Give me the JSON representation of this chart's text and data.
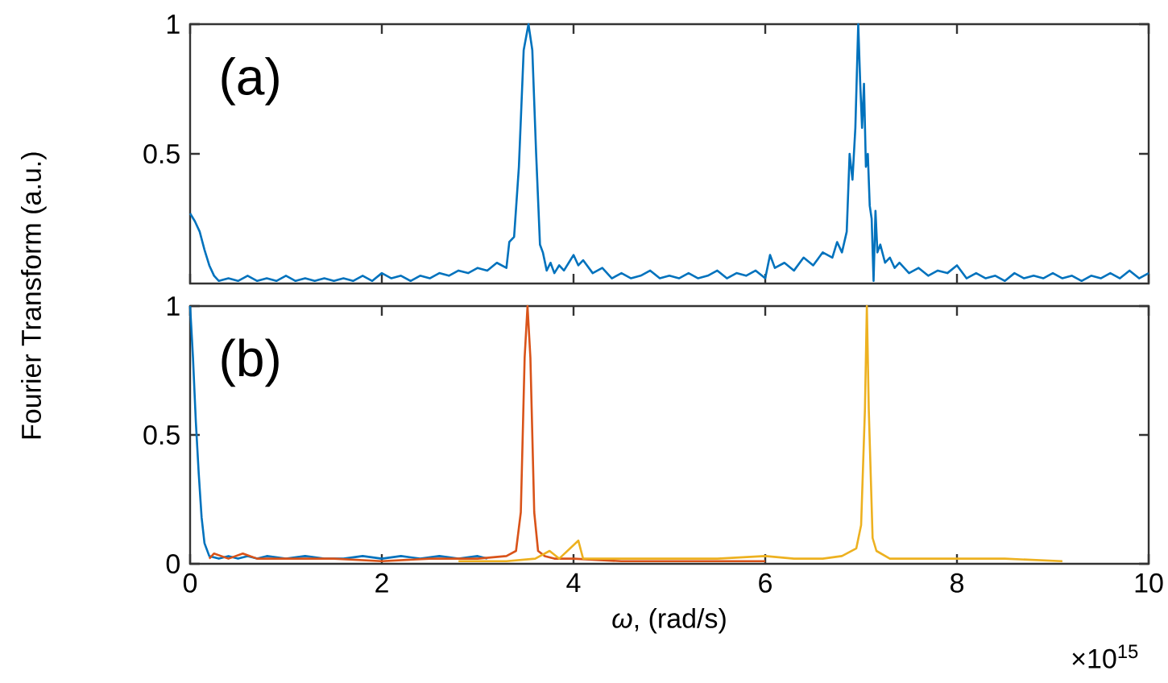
{
  "chart_data": [
    {
      "type": "line",
      "xlim": [
        0,
        10
      ],
      "xticks": [
        0,
        2,
        4,
        6,
        8,
        10
      ],
      "ylim": [
        0,
        1
      ],
      "yticks": [
        0.5,
        1
      ],
      "tick_labels": "y",
      "annotations": [
        "(a)"
      ],
      "series": [
        {
          "color": "#0072bd",
          "x": [
            0,
            0.05,
            0.1,
            0.15,
            0.2,
            0.25,
            0.3,
            0.4,
            0.5,
            0.6,
            0.7,
            0.8,
            0.9,
            1.0,
            1.1,
            1.2,
            1.3,
            1.4,
            1.5,
            1.6,
            1.7,
            1.8,
            1.9,
            2.0,
            2.1,
            2.2,
            2.3,
            2.4,
            2.5,
            2.6,
            2.7,
            2.8,
            2.9,
            3.0,
            3.1,
            3.2,
            3.3,
            3.33,
            3.38,
            3.43,
            3.48,
            3.53,
            3.57,
            3.61,
            3.65,
            3.68,
            3.72,
            3.76,
            3.8,
            3.85,
            3.9,
            3.95,
            4.0,
            4.05,
            4.1,
            4.2,
            4.3,
            4.4,
            4.5,
            4.6,
            4.7,
            4.8,
            4.9,
            5.0,
            5.1,
            5.2,
            5.3,
            5.4,
            5.5,
            5.6,
            5.7,
            5.8,
            5.9,
            6.0,
            6.05,
            6.1,
            6.2,
            6.3,
            6.4,
            6.5,
            6.6,
            6.7,
            6.75,
            6.8,
            6.85,
            6.88,
            6.91,
            6.94,
            6.97,
            6.99,
            7.01,
            7.03,
            7.05,
            7.07,
            7.09,
            7.11,
            7.13,
            7.15,
            7.17,
            7.2,
            7.25,
            7.3,
            7.35,
            7.4,
            7.5,
            7.6,
            7.7,
            7.8,
            7.9,
            8.0,
            8.1,
            8.2,
            8.3,
            8.4,
            8.5,
            8.6,
            8.7,
            8.8,
            8.9,
            9.0,
            9.1,
            9.2,
            9.3,
            9.4,
            9.5,
            9.6,
            9.7,
            9.8,
            9.9,
            10
          ],
          "values": [
            0.27,
            0.24,
            0.2,
            0.13,
            0.07,
            0.03,
            0.01,
            0.02,
            0.01,
            0.03,
            0.01,
            0.02,
            0.01,
            0.03,
            0.01,
            0.02,
            0.01,
            0.02,
            0.01,
            0.02,
            0.01,
            0.03,
            0.01,
            0.04,
            0.02,
            0.03,
            0.01,
            0.03,
            0.02,
            0.04,
            0.03,
            0.05,
            0.04,
            0.06,
            0.05,
            0.08,
            0.06,
            0.16,
            0.18,
            0.45,
            0.9,
            1.0,
            0.9,
            0.5,
            0.15,
            0.12,
            0.05,
            0.08,
            0.04,
            0.07,
            0.05,
            0.08,
            0.11,
            0.07,
            0.09,
            0.04,
            0.06,
            0.02,
            0.04,
            0.02,
            0.03,
            0.05,
            0.02,
            0.03,
            0.02,
            0.04,
            0.02,
            0.03,
            0.05,
            0.02,
            0.04,
            0.03,
            0.05,
            0.02,
            0.11,
            0.06,
            0.08,
            0.05,
            0.1,
            0.07,
            0.12,
            0.1,
            0.16,
            0.12,
            0.2,
            0.5,
            0.4,
            0.6,
            1.0,
            0.78,
            0.6,
            0.77,
            0.45,
            0.5,
            0.3,
            0.25,
            0.01,
            0.28,
            0.12,
            0.15,
            0.08,
            0.1,
            0.06,
            0.08,
            0.04,
            0.06,
            0.03,
            0.05,
            0.04,
            0.07,
            0.02,
            0.04,
            0.02,
            0.03,
            0.01,
            0.04,
            0.02,
            0.03,
            0.02,
            0.04,
            0.02,
            0.03,
            0.01,
            0.03,
            0.02,
            0.04,
            0.02,
            0.05,
            0.02,
            0.04
          ]
        }
      ]
    },
    {
      "type": "line",
      "xlim": [
        0,
        10
      ],
      "xticks": [
        0,
        2,
        4,
        6,
        8,
        10
      ],
      "ylim": [
        0,
        1
      ],
      "yticks": [
        0,
        0.5,
        1
      ],
      "xlabel": "*ω*, (rad/s)",
      "ylabel": "Fourier Transform (a.u.)",
      "annotations": [
        "(b)",
        "×10$^{15}$"
      ],
      "series": [
        {
          "color": "#0072bd",
          "x": [
            0,
            0.03,
            0.06,
            0.09,
            0.12,
            0.15,
            0.2,
            0.3,
            0.4,
            0.5,
            0.6,
            0.7,
            0.8,
            1.0,
            1.2,
            1.4,
            1.6,
            1.8,
            2.0,
            2.2,
            2.4,
            2.6,
            2.8,
            3.0,
            3.1
          ],
          "values": [
            1,
            0.8,
            0.55,
            0.35,
            0.18,
            0.08,
            0.03,
            0.02,
            0.03,
            0.02,
            0.03,
            0.02,
            0.03,
            0.02,
            0.03,
            0.02,
            0.02,
            0.03,
            0.02,
            0.03,
            0.02,
            0.03,
            0.02,
            0.03,
            0.02
          ]
        },
        {
          "color": "#d95319",
          "x": [
            0.2,
            0.25,
            0.4,
            0.55,
            0.7,
            1.0,
            1.5,
            2.0,
            2.5,
            3.0,
            3.3,
            3.4,
            3.45,
            3.49,
            3.52,
            3.55,
            3.59,
            3.63,
            3.7,
            3.8,
            4.0,
            4.5,
            5.0,
            5.5,
            6.0
          ],
          "values": [
            0.02,
            0.04,
            0.02,
            0.04,
            0.02,
            0.02,
            0.02,
            0.01,
            0.02,
            0.02,
            0.03,
            0.05,
            0.2,
            0.8,
            1.0,
            0.8,
            0.2,
            0.05,
            0.03,
            0.02,
            0.02,
            0.01,
            0.01,
            0.01,
            0.01
          ]
        },
        {
          "color": "#edb120",
          "x": [
            2.8,
            3.0,
            3.3,
            3.6,
            3.75,
            3.85,
            4.05,
            4.1,
            4.5,
            5.0,
            5.5,
            6.0,
            6.3,
            6.6,
            6.8,
            6.95,
            7.0,
            7.04,
            7.06,
            7.08,
            7.12,
            7.16,
            7.3,
            7.6,
            8.0,
            8.5,
            9.1
          ],
          "values": [
            0.01,
            0.01,
            0.01,
            0.02,
            0.05,
            0.02,
            0.09,
            0.02,
            0.02,
            0.02,
            0.02,
            0.03,
            0.02,
            0.02,
            0.03,
            0.06,
            0.15,
            0.6,
            1.0,
            0.6,
            0.1,
            0.05,
            0.02,
            0.02,
            0.02,
            0.02,
            0.01
          ]
        }
      ]
    }
  ]
}
